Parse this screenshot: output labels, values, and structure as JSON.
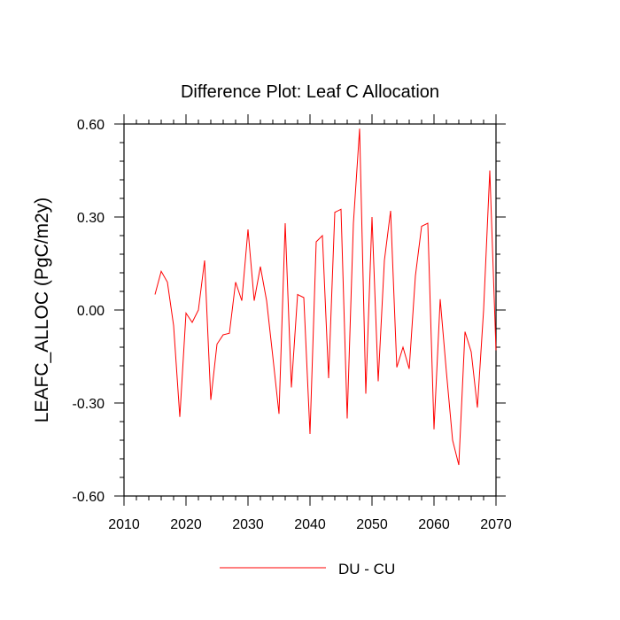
{
  "chart_data": {
    "type": "line",
    "title": "Difference Plot: Leaf C Allocation",
    "xlabel": "",
    "ylabel": "LEAFC_ALLOC  (PgC/m2y)",
    "xlim": [
      2010,
      2070
    ],
    "ylim": [
      -0.6,
      0.6
    ],
    "x_ticks": [
      2010,
      2020,
      2030,
      2040,
      2050,
      2060,
      2070
    ],
    "x_tick_labels": [
      "2010",
      "2020",
      "2030",
      "2040",
      "2050",
      "2060",
      "2070"
    ],
    "y_ticks": [
      0.6,
      0.3,
      0.0,
      -0.3,
      -0.6
    ],
    "y_tick_labels": [
      "0.60",
      "0.30",
      "0.00",
      "-0.30",
      "-0.60"
    ],
    "grid": false,
    "legend_position": "bottom-center",
    "series": [
      {
        "name": "DU - CU",
        "color": "#ff0000",
        "x": [
          2015,
          2016,
          2017,
          2018,
          2019,
          2020,
          2021,
          2022,
          2023,
          2024,
          2025,
          2026,
          2027,
          2028,
          2029,
          2030,
          2031,
          2032,
          2033,
          2034,
          2035,
          2036,
          2037,
          2038,
          2039,
          2040,
          2041,
          2042,
          2043,
          2044,
          2045,
          2046,
          2047,
          2048,
          2049,
          2050,
          2051,
          2052,
          2053,
          2054,
          2055,
          2056,
          2057,
          2058,
          2059,
          2060,
          2061,
          2062,
          2063,
          2064,
          2065,
          2066,
          2067,
          2068,
          2069,
          2070
        ],
        "values": [
          0.05,
          0.125,
          0.09,
          -0.05,
          -0.345,
          -0.01,
          -0.04,
          0.0,
          0.16,
          -0.29,
          -0.11,
          -0.08,
          -0.075,
          0.09,
          0.03,
          0.26,
          0.03,
          0.14,
          0.03,
          -0.15,
          -0.335,
          0.28,
          -0.25,
          0.05,
          0.04,
          -0.4,
          0.22,
          0.24,
          -0.22,
          0.315,
          0.325,
          -0.35,
          0.28,
          0.585,
          -0.27,
          0.3,
          -0.23,
          0.16,
          0.32,
          -0.185,
          -0.12,
          -0.19,
          0.11,
          0.27,
          0.28,
          -0.385,
          0.035,
          -0.2,
          -0.42,
          -0.5,
          -0.07,
          -0.135,
          -0.315,
          0.0,
          0.45,
          -0.13
        ]
      }
    ]
  }
}
